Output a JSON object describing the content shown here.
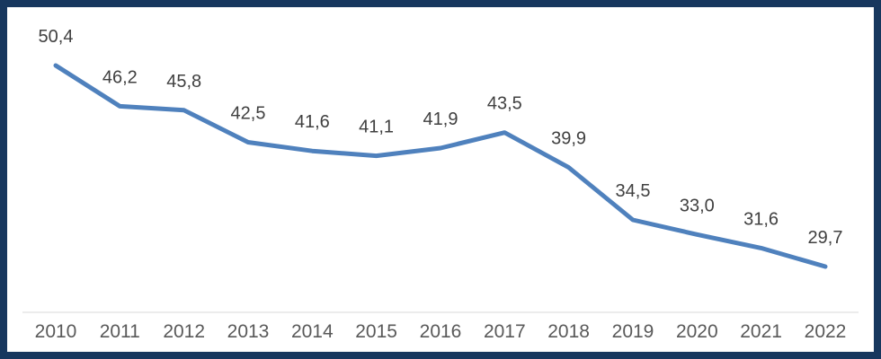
{
  "chart_data": {
    "type": "line",
    "categories": [
      "2010",
      "2011",
      "2012",
      "2013",
      "2014",
      "2015",
      "2016",
      "2017",
      "2018",
      "2019",
      "2020",
      "2021",
      "2022"
    ],
    "values": [
      50.4,
      46.2,
      45.8,
      42.5,
      41.6,
      41.1,
      41.9,
      43.5,
      39.9,
      34.5,
      33.0,
      31.6,
      29.7
    ],
    "value_labels": [
      "50,4",
      "46,2",
      "45,8",
      "42,5",
      "41,6",
      "41,1",
      "41,9",
      "43,5",
      "39,9",
      "34,5",
      "33,0",
      "31,6",
      "29,7"
    ],
    "title": "",
    "xlabel": "",
    "ylabel": "",
    "ylim": [
      25,
      55
    ],
    "grid": false,
    "legend": false,
    "data_labels_shown": true,
    "decimal_separator": ","
  },
  "colors": {
    "line": "#4F81BD",
    "frame_border": "#17375E",
    "data_label": "#404040",
    "tick_label": "#595959",
    "axis_line": "#D9D9D9",
    "background": "#FFFFFF"
  }
}
